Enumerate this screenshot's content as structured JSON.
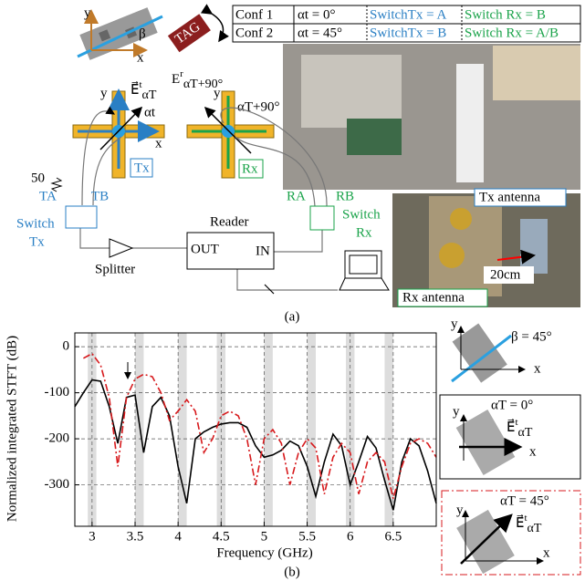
{
  "diagram": {
    "icon": {
      "y": "y",
      "x": "x",
      "beta": "β"
    },
    "tag": "TAG",
    "table": {
      "rows": [
        [
          "Conf 1",
          "αt = 0°",
          "SwitchTx = A",
          "Switch Rx = B"
        ],
        [
          "Conf 2",
          "αt = 45°",
          "SwitchTx = B",
          "Switch Rx = A/B"
        ]
      ]
    },
    "tx": {
      "y": "y",
      "e": "E⃗",
      "sup": "t",
      "sub": "αT",
      "angle": "αt",
      "x": "x",
      "name": "Tx"
    },
    "rx": {
      "e": "E",
      "sup": "r",
      "sub": "αT+90°",
      "y": "y",
      "angle": "αT+90°",
      "name": "Rx"
    },
    "load": "50",
    "ta": "TA",
    "tb": "TB",
    "switch_tx": [
      "Switch",
      "Tx"
    ],
    "splitter": "Splitter",
    "reader": {
      "title": "Reader",
      "out": "OUT",
      "in": "IN"
    },
    "ra": "RA",
    "rb": "RB",
    "switch_rx": [
      "Switch",
      "Rx"
    ],
    "tx_antenna": "Tx antenna",
    "rx_antenna": "Rx antenna",
    "distance": "20cm",
    "caption": "(a)"
  },
  "legend_icons": [
    {
      "y": "y",
      "label": "β = 45°",
      "x": "x"
    },
    {
      "y": "y",
      "label": "αT = 0°",
      "e": "E⃗",
      "sup": "t",
      "sub": "αT",
      "x": "x"
    },
    {
      "y": "y",
      "label": "αT = 45°",
      "e": "E⃗",
      "sup": "t",
      "sub": "αT",
      "x": "x"
    }
  ],
  "chart_data": {
    "type": "line",
    "caption": "(b)",
    "x_label": "Frequency (GHz)",
    "y_label": "Normalized integrated STFT (dB)",
    "x": [
      2.8,
      2.9,
      3.0,
      3.1,
      3.2,
      3.3,
      3.4,
      3.5,
      3.6,
      3.7,
      3.8,
      3.9,
      4.0,
      4.1,
      4.2,
      4.3,
      4.4,
      4.5,
      4.6,
      4.7,
      4.8,
      4.9,
      5.0,
      5.1,
      5.2,
      5.3,
      5.4,
      5.5,
      5.6,
      5.7,
      5.8,
      5.9,
      6.0,
      6.1,
      6.2,
      6.3,
      6.4,
      6.5,
      6.6,
      6.7,
      6.8,
      6.9,
      7.0
    ],
    "series": [
      {
        "color": "#000000",
        "dash": "solid",
        "values": [
          -130,
          -100,
          -72,
          -75,
          -130,
          -210,
          -110,
          -105,
          -230,
          -130,
          -110,
          -150,
          -260,
          -340,
          -200,
          -185,
          -175,
          -168,
          -165,
          -165,
          -175,
          -215,
          -240,
          -235,
          -225,
          -205,
          -215,
          -260,
          -325,
          -250,
          -190,
          -215,
          -300,
          -250,
          -195,
          -220,
          -290,
          -355,
          -250,
          -200,
          -215,
          -270,
          -340
        ]
      },
      {
        "color": "#d7191c",
        "dash": "dashdot",
        "values": [
          null,
          -25,
          -15,
          -40,
          -110,
          -260,
          -110,
          -70,
          -60,
          -65,
          -100,
          -160,
          -140,
          -115,
          -140,
          -230,
          -200,
          -150,
          -140,
          -150,
          -200,
          -300,
          -200,
          -180,
          -210,
          -300,
          -230,
          -200,
          -220,
          -320,
          -240,
          -210,
          -230,
          -320,
          -250,
          -230,
          -250,
          -330,
          -260,
          -210,
          -200,
          -210,
          -240
        ]
      }
    ],
    "bands": [
      3.0,
      3.55,
      4.05,
      4.5,
      5.05,
      5.55,
      6.0,
      6.45
    ],
    "band_width": 0.1,
    "xlim": [
      2.8,
      7.0
    ],
    "ylim": [
      -390,
      30
    ],
    "xticks": [
      3,
      3.5,
      4,
      4.5,
      5,
      5.5,
      6,
      6.5
    ],
    "yticks": [
      0,
      -100,
      -200,
      -300
    ],
    "grid": true
  }
}
